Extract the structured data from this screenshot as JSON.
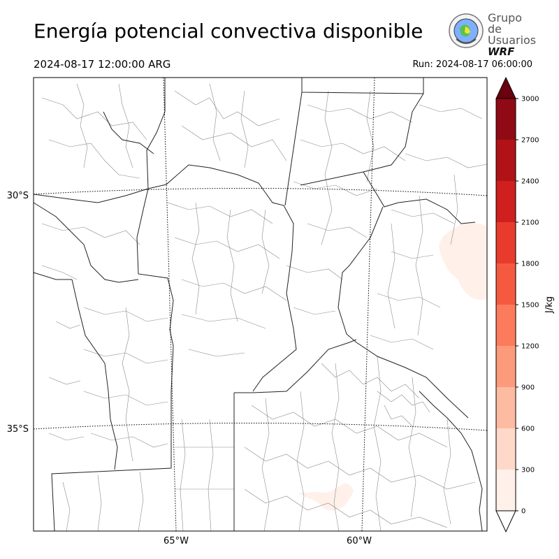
{
  "title": "Energía potencial convectiva disponible",
  "valid_time": "2024-08-17 12:00:00 ARG",
  "run_time": "Run: 2024-08-17 06:00:00",
  "logo": {
    "line1": "Grupo de",
    "line2": "Usuarios",
    "line3": "WRF"
  },
  "map": {
    "lat_labels": [
      "30°S",
      "35°S"
    ],
    "lon_labels": [
      "65°W",
      "60°W"
    ]
  },
  "colorbar": {
    "label": "J/kg",
    "ticks": [
      "0",
      "300",
      "600",
      "900",
      "1200",
      "1500",
      "1800",
      "2100",
      "2400",
      "2700",
      "3000"
    ],
    "colors": [
      "#fff0e9",
      "#fed9c9",
      "#fdbba1",
      "#fc9b7c",
      "#fb7b5c",
      "#f55a40",
      "#e93b2d",
      "#cf1f1f",
      "#b11218",
      "#8f0a14",
      "#6b0010"
    ]
  }
}
